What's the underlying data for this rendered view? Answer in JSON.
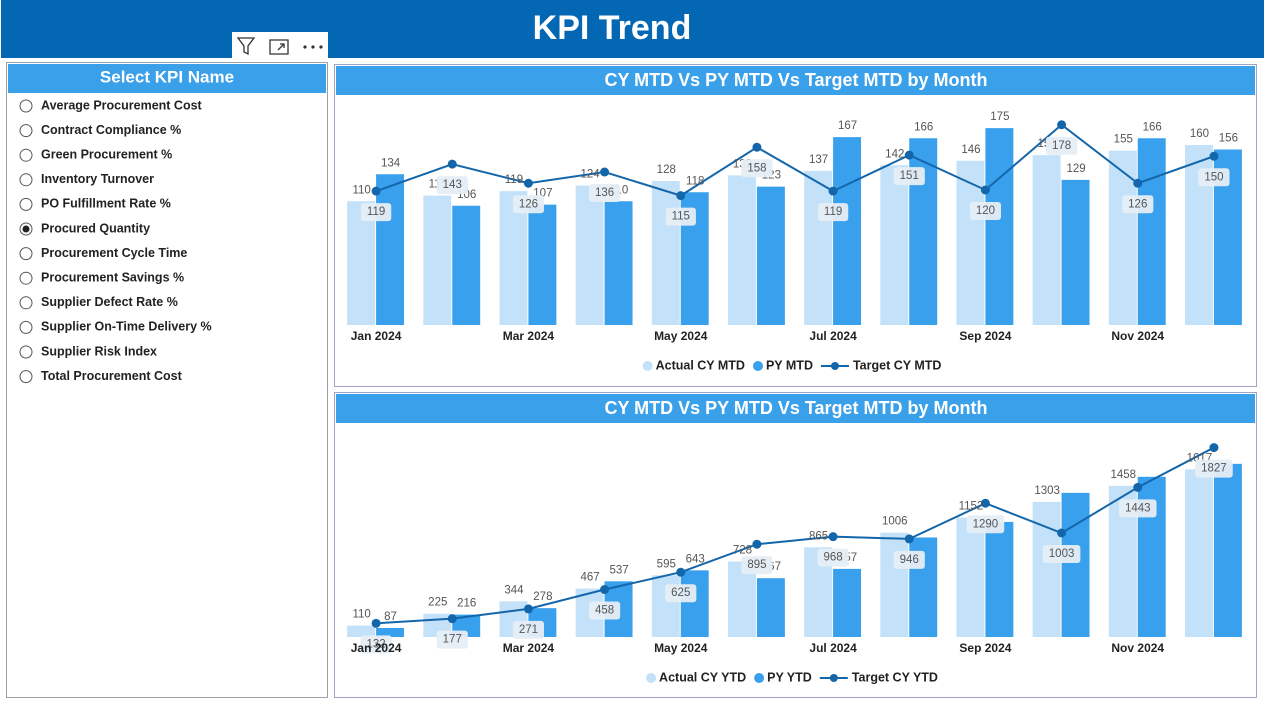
{
  "header": {
    "title": "KPI Trend"
  },
  "slicer": {
    "title": "Select KPI Name",
    "options": [
      "Average Procurement Cost",
      "Contract Compliance %",
      "Green Procurement %",
      "Inventory Turnover",
      "PO Fulfillment Rate %",
      "Procured Quantity",
      "Procurement Cycle Time",
      "Procurement Savings %",
      "Supplier Defect Rate %",
      "Supplier On-Time Delivery %",
      "Supplier Risk Index",
      "Total Procurement Cost"
    ],
    "selected": 5
  },
  "chart_data": [
    {
      "type": "combo",
      "title": "CY MTD Vs PY MTD Vs Target MTD by Month",
      "categories": [
        "Jan 2024",
        null,
        "Mar 2024",
        null,
        "May 2024",
        null,
        "Jul 2024",
        null,
        "Sep 2024",
        null,
        "Nov 2024",
        null
      ],
      "ylim": [
        0,
        200
      ],
      "legend": "bottom",
      "series": [
        {
          "name": "Actual CY MTD",
          "kind": "bar",
          "color": "#c3e1f8",
          "values": [
            110,
            115,
            119,
            124,
            128,
            133,
            137,
            142,
            146,
            151,
            155,
            160
          ]
        },
        {
          "name": "PY MTD",
          "kind": "bar",
          "color": "#38a0ec",
          "values": [
            134,
            106,
            107,
            110,
            118,
            123,
            167,
            166,
            175,
            129,
            166,
            156
          ]
        },
        {
          "name": "Target CY MTD",
          "kind": "line",
          "color": "#1466aa",
          "values": [
            119,
            143,
            126,
            136,
            115,
            158,
            119,
            151,
            120,
            178,
            126,
            150
          ]
        }
      ]
    },
    {
      "type": "combo",
      "title": "CY MTD Vs PY MTD Vs Target MTD by Month",
      "categories": [
        "Jan 2024",
        null,
        "Mar 2024",
        null,
        "May 2024",
        null,
        "Jul 2024",
        null,
        "Sep 2024",
        null,
        "Nov 2024",
        null
      ],
      "ylim": [
        0,
        1900
      ],
      "legend": "bottom",
      "series": [
        {
          "name": "Actual CY YTD",
          "kind": "bar",
          "color": "#c3e1f8",
          "values": [
            110,
            225,
            344,
            467,
            595,
            728,
            865,
            1006,
            1152,
            1303,
            1458,
            1617
          ]
        },
        {
          "name": "PY YTD",
          "kind": "bar",
          "color": "#38a0ec",
          "values": [
            87,
            216,
            278,
            537,
            643,
            567,
            657,
            960,
            1110,
            1390,
            1545,
            1670
          ],
          "value_labels": [
            "87",
            "216",
            "278",
            "537",
            "643",
            "567",
            "657",
            null,
            null,
            null,
            null,
            null
          ]
        },
        {
          "name": "Target CY YTD",
          "kind": "line",
          "color": "#1466aa",
          "values": [
            132,
            177,
            271,
            458,
            625,
            895,
            968,
            946,
            1290,
            1003,
            1443,
            1827
          ]
        }
      ]
    }
  ]
}
